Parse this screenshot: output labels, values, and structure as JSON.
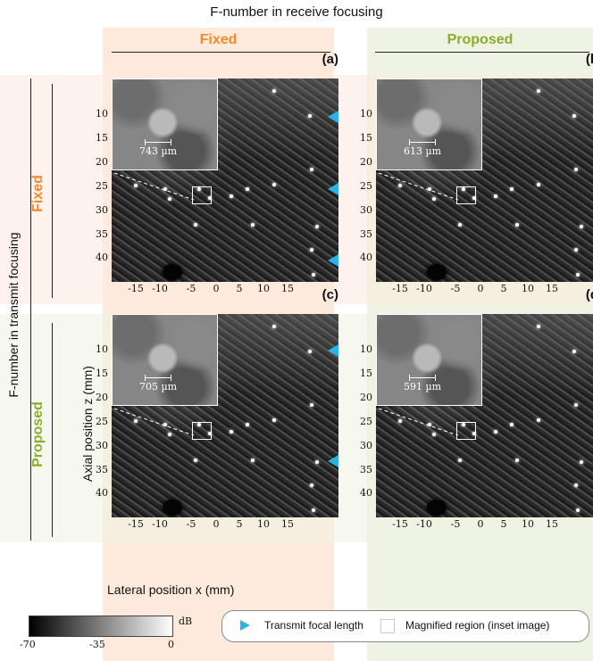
{
  "header": {
    "title": "F-number in receive focusing"
  },
  "columns": {
    "fixed": "Fixed",
    "proposed": "Proposed"
  },
  "rows": {
    "title": "F-number in transmit focusing",
    "fixed": "Fixed",
    "proposed": "Proposed"
  },
  "axes": {
    "axial_label": "Axial position z (mm)",
    "lateral_label": "Lateral position x (mm)",
    "yticks": [
      "10",
      "15",
      "20",
      "25",
      "30",
      "35",
      "40"
    ],
    "xticks": [
      "-15",
      "-10",
      "-5",
      "0",
      "5",
      "10",
      "15"
    ]
  },
  "panels": [
    {
      "letter": "(a)",
      "inset_label": "743 µm"
    },
    {
      "letter": "(b)",
      "inset_label": "613 µm"
    },
    {
      "letter": "(c)",
      "inset_label": "705 µm"
    },
    {
      "letter": "(d)",
      "inset_label": "591 µm"
    }
  ],
  "colorbar": {
    "unit": "dB",
    "ticks": [
      "-70",
      "-35",
      "0"
    ]
  },
  "legend": {
    "transmit": "Transmit focal length",
    "magnified": "Magnified region (inset image)",
    "marker_color": "#2bb3e6"
  },
  "colors": {
    "fixed": "#f08a2c",
    "proposed": "#8aae2a"
  }
}
